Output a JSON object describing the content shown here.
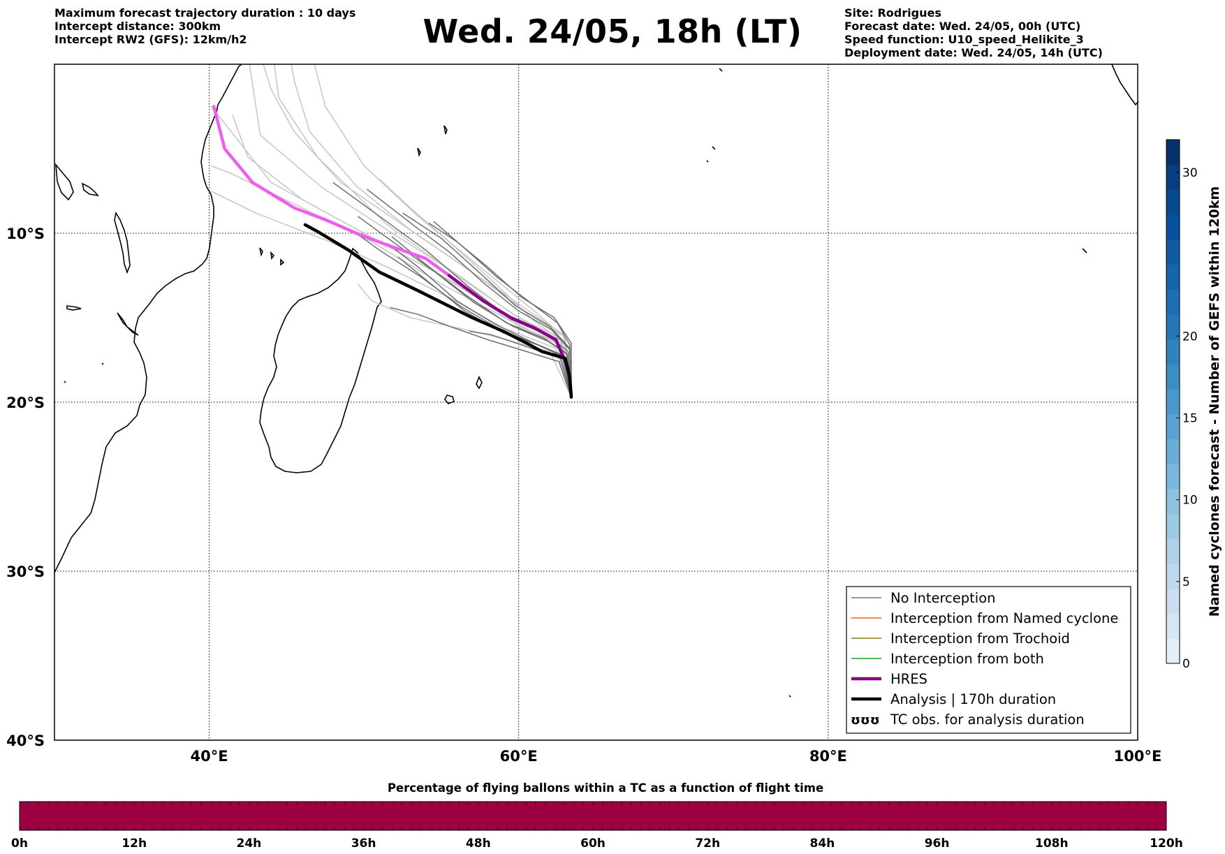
{
  "header": {
    "left_lines": [
      "Maximum forecast trajectory duration : 10 days",
      "Intercept distance: 300km",
      "Intercept RW2 (GFS):  12km/h2"
    ],
    "title": "Wed. 24/05, 18h (LT)",
    "right_lines": [
      "Site: Rodrigues",
      "Forecast date: Wed. 24/05, 00h (UTC)",
      "Speed function: U10_speed_Helikite_3",
      "Deployment date: Wed. 24/05, 14h (UTC)"
    ]
  },
  "map": {
    "lon_range": [
      30,
      100
    ],
    "lat_range": [
      -40,
      0
    ],
    "grid": "dotted",
    "lon_ticks": [
      {
        "value": 40,
        "label": "40°E"
      },
      {
        "value": 60,
        "label": "60°E"
      },
      {
        "value": 80,
        "label": "80°E"
      },
      {
        "value": 100,
        "label": "100°E"
      }
    ],
    "lat_ticks": [
      {
        "value": -10,
        "label": "10°S"
      },
      {
        "value": -20,
        "label": "20°S"
      },
      {
        "value": -30,
        "label": "30°S"
      },
      {
        "value": -40,
        "label": "40°S"
      }
    ],
    "launch_site": {
      "lon": 63.4,
      "lat": -19.7
    },
    "analysis_track": [
      [
        63.4,
        -19.7
      ],
      [
        63.3,
        -18.5
      ],
      [
        63.0,
        -17.4
      ],
      [
        61.5,
        -17.0
      ],
      [
        60.5,
        -16.5
      ],
      [
        59.0,
        -15.8
      ],
      [
        57.0,
        -15.0
      ],
      [
        53.5,
        -13.4
      ],
      [
        51.0,
        -12.3
      ],
      [
        49.0,
        -11.0
      ],
      [
        47.0,
        -9.9
      ],
      [
        46.2,
        -9.5
      ]
    ],
    "hres_track": [
      [
        63.4,
        -19.7
      ],
      [
        63.2,
        -18.0
      ],
      [
        62.4,
        -16.3
      ],
      [
        61.0,
        -15.6
      ],
      [
        59.5,
        -15.0
      ],
      [
        57.7,
        -14.0
      ],
      [
        55.5,
        -12.5
      ],
      [
        54.0,
        -11.5
      ],
      [
        51.5,
        -10.7
      ],
      [
        49.5,
        -10.0
      ],
      [
        47.5,
        -9.2
      ],
      [
        45.5,
        -8.5
      ],
      [
        42.8,
        -7.0
      ],
      [
        41.0,
        -5.0
      ],
      [
        40.3,
        -2.5
      ]
    ],
    "ensemble_light_tracks": [
      [
        [
          63.4,
          -19.7
        ],
        [
          62.7,
          -16.5
        ],
        [
          60.0,
          -15.5
        ],
        [
          56.0,
          -13.0
        ],
        [
          52.0,
          -11.0
        ],
        [
          48.0,
          -9.0
        ],
        [
          44.0,
          -7.0
        ],
        [
          41.0,
          -3.5
        ],
        [
          40.1,
          -2.5
        ]
      ],
      [
        [
          63.4,
          -19.7
        ],
        [
          62.5,
          -16.3
        ],
        [
          59.0,
          -14.8
        ],
        [
          55.0,
          -12.5
        ],
        [
          50.0,
          -10.0
        ],
        [
          46.0,
          -8.0
        ],
        [
          42.5,
          -5.5
        ],
        [
          41.5,
          -3.0
        ]
      ],
      [
        [
          63.4,
          -19.7
        ],
        [
          62.9,
          -16.0
        ],
        [
          60.5,
          -14.5
        ],
        [
          56.5,
          -12.0
        ],
        [
          52.5,
          -9.5
        ],
        [
          48.5,
          -7.0
        ],
        [
          45.5,
          -4.0
        ],
        [
          44.0,
          -1.5
        ],
        [
          43.5,
          0
        ]
      ],
      [
        [
          63.4,
          -19.7
        ],
        [
          63.0,
          -16.2
        ],
        [
          61.0,
          -14.6
        ],
        [
          57.5,
          -12.0
        ],
        [
          53.5,
          -9.0
        ],
        [
          50.0,
          -6.0
        ],
        [
          47.5,
          -2.5
        ],
        [
          46.8,
          0
        ]
      ],
      [
        [
          63.4,
          -19.7
        ],
        [
          62.8,
          -16.4
        ],
        [
          60.0,
          -15.0
        ],
        [
          56.0,
          -12.5
        ],
        [
          51.5,
          -9.5
        ],
        [
          47.0,
          -5.5
        ],
        [
          44.5,
          -2.0
        ],
        [
          44.2,
          0
        ]
      ],
      [
        [
          63.4,
          -19.7
        ],
        [
          62.6,
          -16.6
        ],
        [
          59.5,
          -15.2
        ],
        [
          55.0,
          -13.0
        ],
        [
          50.5,
          -10.5
        ],
        [
          46.0,
          -8.5
        ],
        [
          41.5,
          -6.5
        ],
        [
          40.1,
          -6.0
        ]
      ],
      [
        [
          63.4,
          -19.7
        ],
        [
          62.4,
          -16.8
        ],
        [
          59.0,
          -15.6
        ],
        [
          55.5,
          -13.8
        ],
        [
          51.5,
          -12.0
        ],
        [
          47.5,
          -10.4
        ],
        [
          43.0,
          -8.8
        ],
        [
          40.1,
          -7.5
        ]
      ],
      [
        [
          63.4,
          -19.7
        ],
        [
          62.9,
          -16.1
        ],
        [
          60.5,
          -14.7
        ],
        [
          57.0,
          -12.3
        ],
        [
          53.0,
          -9.8
        ],
        [
          49.5,
          -7.2
        ],
        [
          46.5,
          -4.0
        ],
        [
          45.5,
          -1.0
        ],
        [
          45.3,
          0
        ]
      ],
      [
        [
          63.4,
          -19.7
        ],
        [
          62.7,
          -16.2
        ],
        [
          59.8,
          -14.9
        ],
        [
          56.3,
          -12.6
        ],
        [
          52.0,
          -10.1
        ],
        [
          47.3,
          -7.3
        ],
        [
          43.3,
          -4.2
        ],
        [
          42.6,
          0
        ]
      ],
      [
        [
          63.4,
          -19.7
        ],
        [
          62.0,
          -17.0
        ],
        [
          58.0,
          -16.0
        ],
        [
          53.0,
          -15.0
        ],
        [
          50.5,
          -14.0
        ],
        [
          49.6,
          -13.0
        ]
      ],
      [
        [
          63.4,
          -19.7
        ],
        [
          63.0,
          -16.5
        ],
        [
          61.0,
          -15.2
        ],
        [
          58.5,
          -13.0
        ],
        [
          55.5,
          -10.5
        ],
        [
          53.0,
          -8.5
        ],
        [
          51.0,
          -6.8
        ]
      ]
    ],
    "ensemble_dark_tracks": [
      [
        [
          63.4,
          -19.7
        ],
        [
          63.2,
          -17.0
        ],
        [
          61.8,
          -16.0
        ],
        [
          59.5,
          -15.1
        ],
        [
          56.8,
          -13.2
        ],
        [
          54.0,
          -11.0
        ],
        [
          51.0,
          -9.0
        ],
        [
          48.0,
          -7.0
        ]
      ],
      [
        [
          63.4,
          -19.7
        ],
        [
          63.3,
          -16.8
        ],
        [
          62.0,
          -15.5
        ],
        [
          59.8,
          -14.3
        ],
        [
          57.3,
          -12.2
        ],
        [
          55.0,
          -10.3
        ],
        [
          52.5,
          -8.8
        ]
      ],
      [
        [
          63.4,
          -19.7
        ],
        [
          62.8,
          -17.2
        ],
        [
          61.0,
          -16.5
        ],
        [
          58.5,
          -15.4
        ],
        [
          56.0,
          -14.0
        ],
        [
          53.5,
          -12.0
        ],
        [
          51.5,
          -10.6
        ]
      ],
      [
        [
          63.4,
          -19.7
        ],
        [
          63.0,
          -17.4
        ],
        [
          61.5,
          -16.7
        ],
        [
          59.0,
          -15.9
        ],
        [
          56.5,
          -14.6
        ],
        [
          54.2,
          -12.9
        ],
        [
          52.2,
          -11.4
        ]
      ],
      [
        [
          63.4,
          -19.7
        ],
        [
          62.6,
          -17.6
        ],
        [
          60.5,
          -17.0
        ],
        [
          58.0,
          -16.3
        ],
        [
          55.5,
          -15.5
        ],
        [
          53.5,
          -14.8
        ],
        [
          51.7,
          -14.4
        ]
      ],
      [
        [
          63.4,
          -19.7
        ],
        [
          63.4,
          -16.5
        ],
        [
          62.3,
          -15.0
        ],
        [
          60.2,
          -13.8
        ],
        [
          58.0,
          -12.0
        ],
        [
          56.0,
          -10.5
        ],
        [
          54.2,
          -9.4
        ]
      ],
      [
        [
          63.4,
          -19.7
        ],
        [
          63.1,
          -17.1
        ],
        [
          61.6,
          -16.2
        ],
        [
          59.2,
          -15.3
        ],
        [
          56.5,
          -13.6
        ],
        [
          53.8,
          -11.7
        ],
        [
          51.8,
          -10.2
        ]
      ],
      [
        [
          63.4,
          -19.7
        ],
        [
          62.9,
          -17.3
        ],
        [
          61.2,
          -16.6
        ],
        [
          58.8,
          -15.7
        ],
        [
          56.2,
          -14.3
        ],
        [
          53.7,
          -12.6
        ],
        [
          51.0,
          -11.0
        ],
        [
          49.2,
          -9.8
        ]
      ],
      [
        [
          63.4,
          -19.7
        ],
        [
          63.3,
          -16.9
        ],
        [
          62.1,
          -15.7
        ],
        [
          60.0,
          -14.6
        ],
        [
          57.8,
          -13.0
        ],
        [
          55.5,
          -11.1
        ],
        [
          53.3,
          -9.6
        ],
        [
          50.2,
          -7.4
        ]
      ],
      [
        [
          63.4,
          -19.7
        ],
        [
          63.2,
          -17.2
        ],
        [
          61.9,
          -16.4
        ],
        [
          59.6,
          -15.5
        ],
        [
          57.1,
          -14.1
        ],
        [
          54.6,
          -12.3
        ],
        [
          52.0,
          -10.6
        ],
        [
          49.6,
          -9.0
        ]
      ],
      [
        [
          63.4,
          -19.7
        ],
        [
          62.7,
          -17.4
        ],
        [
          60.8,
          -16.8
        ],
        [
          58.2,
          -16.0
        ],
        [
          56.8,
          -15.8
        ]
      ],
      [
        [
          63.4,
          -19.7
        ],
        [
          63.3,
          -16.6
        ],
        [
          62.5,
          -15.3
        ],
        [
          60.6,
          -14.0
        ],
        [
          58.6,
          -12.6
        ],
        [
          56.4,
          -10.8
        ],
        [
          54.5,
          -9.3
        ]
      ]
    ]
  },
  "legend": {
    "items": [
      {
        "label": "No Interception",
        "color": "#777777",
        "style": "thin"
      },
      {
        "label": "Interception from Named cyclone",
        "color": "#e8601c",
        "style": "thin"
      },
      {
        "label": "Interception from Trochoid",
        "color": "#8a7a1a",
        "style": "thin"
      },
      {
        "label": "Interception from both",
        "color": "#1a9a1a",
        "style": "thin"
      },
      {
        "label": "HRES",
        "color": "#8a008a",
        "style": "thick"
      },
      {
        "label": "Analysis | 170h duration",
        "color": "#000000",
        "style": "thick"
      },
      {
        "label": "TC obs. for analysis duration",
        "color": "#000000",
        "style": "symbols"
      }
    ],
    "placement": "lower-right"
  },
  "colorbar_right": {
    "label": "Named cyclones forecast - Number of GEFS within 120km",
    "range": [
      0,
      32
    ],
    "ticks": [
      0,
      5,
      10,
      15,
      20,
      30
    ],
    "colors": [
      "#e3eef9",
      "#d6e6f4",
      "#cadef0",
      "#bfd8ed",
      "#b0d2e8",
      "#9ecae1",
      "#8dc1dd",
      "#7bb7da",
      "#6aaed6",
      "#5aa2cf",
      "#4a98c9",
      "#3d8dc3",
      "#3282be",
      "#2777b8",
      "#1f6eb3",
      "#1764ab",
      "#0f5aa3",
      "#08519c",
      "#08488e",
      "#083e81",
      "#08306b"
    ]
  },
  "colorbar_bottom": {
    "title": "Percentage of flying ballons within a TC as a function of flight time",
    "ticks": [
      "0h",
      "12h",
      "24h",
      "36h",
      "48h",
      "60h",
      "72h",
      "84h",
      "96h",
      "108h",
      "120h"
    ],
    "fill_color": "#9e0142",
    "value_percent": 100
  }
}
